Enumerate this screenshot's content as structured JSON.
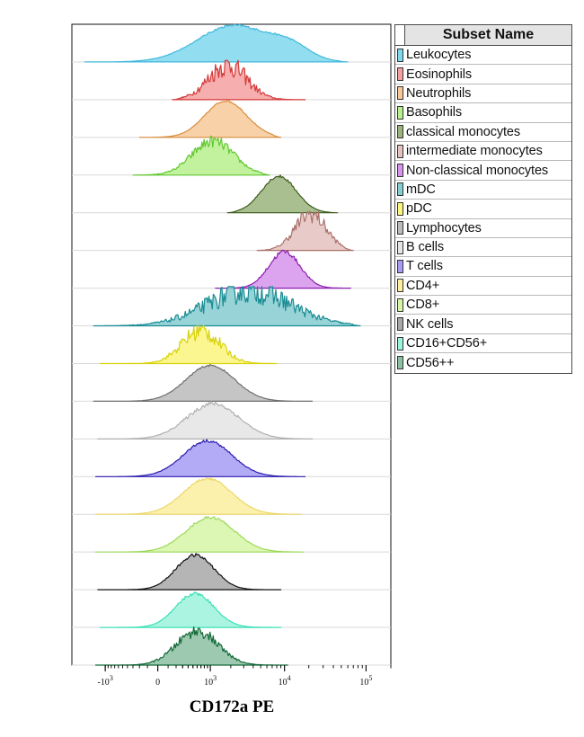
{
  "chart_data": {
    "type": "area",
    "description": "Stacked flow cytometry histograms (overlay ridge plot) of CD172a PE for immune cell subsets",
    "xlabel": "CD172a PE",
    "x_scale": "biexponential",
    "x_range": [
      -3000,
      200000
    ],
    "x_ticks": [
      {
        "value": -1000,
        "base": "-10",
        "exp": "3"
      },
      {
        "value": 0,
        "base": "0",
        "exp": ""
      },
      {
        "value": 1000,
        "base": "10",
        "exp": "3"
      },
      {
        "value": 10000,
        "base": "10",
        "exp": "4"
      },
      {
        "value": 100000,
        "base": "10",
        "exp": "5"
      }
    ],
    "legend_title": "Subset Name",
    "legend_position": "right",
    "series": [
      {
        "name": "Leukocytes",
        "color": "#7fd7ec",
        "line": "#40b8dc",
        "peaks": [
          {
            "x": 2200,
            "h": 0.95,
            "w": 1.05
          },
          {
            "x": 12000,
            "h": 0.32,
            "w": 0.55
          }
        ],
        "range": [
          -2000,
          60000
        ],
        "noise": 0.03
      },
      {
        "name": "Eosinophils",
        "color": "#f4a0a0",
        "line": "#d43a3a",
        "peaks": [
          {
            "x": 1800,
            "h": 0.9,
            "w": 0.55
          }
        ],
        "range": [
          150,
          18000
        ],
        "noise": 0.35
      },
      {
        "name": "Neutrophils",
        "color": "#f7c99a",
        "line": "#d88c3c",
        "peaks": [
          {
            "x": 1700,
            "h": 0.95,
            "w": 0.6
          }
        ],
        "range": [
          -200,
          9000
        ],
        "noise": 0.03
      },
      {
        "name": "Basophils",
        "color": "#b8f08e",
        "line": "#62c832",
        "peaks": [
          {
            "x": 1100,
            "h": 0.88,
            "w": 0.6
          }
        ],
        "range": [
          -300,
          6500
        ],
        "noise": 0.18
      },
      {
        "name": "classical monocytes",
        "color": "#9bb47c",
        "line": "#3c5c1e",
        "peaks": [
          {
            "x": 8500,
            "h": 0.95,
            "w": 0.5
          }
        ],
        "range": [
          1800,
          45000
        ],
        "noise": 0.04
      },
      {
        "name": "intermediate monocytes",
        "color": "#e4c2be",
        "line": "#a9706a",
        "peaks": [
          {
            "x": 21000,
            "h": 0.95,
            "w": 0.45
          }
        ],
        "range": [
          4500,
          70000
        ],
        "noise": 0.25
      },
      {
        "name": "Non-classical monocytes",
        "color": "#d694ec",
        "line": "#8c1eae",
        "peaks": [
          {
            "x": 10000,
            "h": 0.95,
            "w": 0.45
          }
        ],
        "range": [
          1200,
          65000
        ],
        "noise": 0.07
      },
      {
        "name": "mDC",
        "color": "#86ccd0",
        "line": "#1a8c94",
        "peaks": [
          {
            "x": 3500,
            "h": 0.92,
            "w": 1.2
          }
        ],
        "range": [
          -1500,
          85000
        ],
        "noise": 0.38
      },
      {
        "name": "pDC",
        "color": "#fcf57e",
        "line": "#d8d20c",
        "peaks": [
          {
            "x": 700,
            "h": 0.85,
            "w": 0.55
          }
        ],
        "range": [
          -1200,
          8000
        ],
        "noise": 0.3
      },
      {
        "name": "Lymphocytes",
        "color": "#bbbbbb",
        "line": "#6e6e6e",
        "peaks": [
          {
            "x": 1000,
            "h": 0.93,
            "w": 0.7
          }
        ],
        "range": [
          -1500,
          22000
        ],
        "noise": 0.03
      },
      {
        "name": "B cells",
        "color": "#e4e4e4",
        "line": "#b0b0b0",
        "peaks": [
          {
            "x": 1100,
            "h": 0.92,
            "w": 0.75
          }
        ],
        "range": [
          -1300,
          22000
        ],
        "noise": 0.07
      },
      {
        "name": "T cells",
        "color": "#a69cf4",
        "line": "#2c1cae",
        "peaks": [
          {
            "x": 900,
            "h": 0.93,
            "w": 0.7
          }
        ],
        "range": [
          -1400,
          18000
        ],
        "noise": 0.04
      },
      {
        "name": "CD4+",
        "color": "#fcee9e",
        "line": "#ecd66a",
        "peaks": [
          {
            "x": 900,
            "h": 0.93,
            "w": 0.7
          }
        ],
        "range": [
          -1400,
          16000
        ],
        "noise": 0.03
      },
      {
        "name": "CD8+",
        "color": "#d6f4a6",
        "line": "#9cd85a",
        "peaks": [
          {
            "x": 1000,
            "h": 0.9,
            "w": 0.7
          }
        ],
        "range": [
          -1400,
          17000
        ],
        "noise": 0.04
      },
      {
        "name": "NK cells",
        "color": "#a8a8a8",
        "line": "#111111",
        "peaks": [
          {
            "x": 550,
            "h": 0.9,
            "w": 0.55
          }
        ],
        "range": [
          -1300,
          9000
        ],
        "noise": 0.05
      },
      {
        "name": "CD16+CD56+",
        "color": "#9cf2dc",
        "line": "#3ce0b6",
        "peaks": [
          {
            "x": 550,
            "h": 0.88,
            "w": 0.55
          }
        ],
        "range": [
          -1200,
          9000
        ],
        "noise": 0.05
      },
      {
        "name": "CD56++",
        "color": "#8cc0a2",
        "line": "#136a38",
        "peaks": [
          {
            "x": 600,
            "h": 0.88,
            "w": 0.6
          }
        ],
        "range": [
          -1400,
          11000
        ],
        "noise": 0.18
      }
    ]
  }
}
